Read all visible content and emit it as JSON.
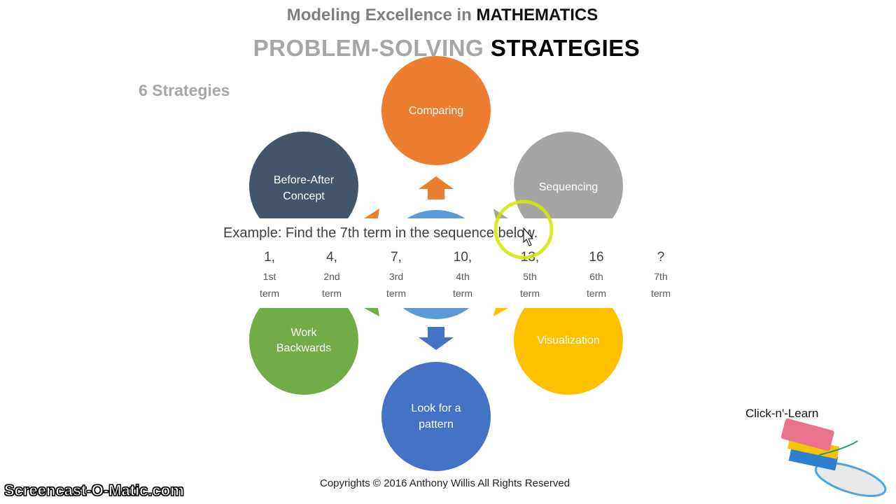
{
  "header": {
    "title_prefix": "Modeling Excellence in ",
    "title_emphasis": "MATHEMATICS",
    "subtitle_prefix": "PROBLEM-SOLVING ",
    "subtitle_emphasis": "STRATEGIES"
  },
  "section_label": "6 Strategies",
  "strategies": [
    {
      "label": "Comparing",
      "color": "#ed7d31"
    },
    {
      "label_line1": "Before-After",
      "label_line2": "Concept",
      "color": "#44546a"
    },
    {
      "label": "Sequencing",
      "color": "#a5a5a5"
    },
    {
      "label_line1": "Work",
      "label_line2": "Backwards",
      "color": "#70ad47"
    },
    {
      "label": "Visualization",
      "color": "#ffc000"
    },
    {
      "label_line1": "Look for a",
      "label_line2": "pattern",
      "color": "#4472c4"
    }
  ],
  "center_color": "#5b9bd5",
  "example": {
    "prompt": "Example: Find the 7th term in the sequence below.",
    "terms": [
      {
        "value": "1,",
        "ordinal": "1st",
        "word": "term"
      },
      {
        "value": "4,",
        "ordinal": "2nd",
        "word": "term"
      },
      {
        "value": "7,",
        "ordinal": "3rd",
        "word": "term"
      },
      {
        "value": "10,",
        "ordinal": "4th",
        "word": "term"
      },
      {
        "value": "13,",
        "ordinal": "5th",
        "word": "term"
      },
      {
        "value": "16",
        "ordinal": "6th",
        "word": "term"
      },
      {
        "value": "?",
        "ordinal": "7th",
        "word": "term"
      }
    ]
  },
  "footer": {
    "copyright": "Copyrights © 2016 Anthony Willis All Rights Reserved",
    "brand": "Click-n'-Learn",
    "watermark": "Screencast-O-Matic.com"
  },
  "cursor_highlight_color": "#d4e800"
}
